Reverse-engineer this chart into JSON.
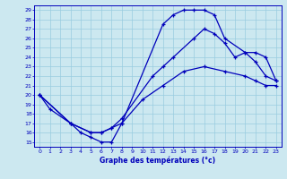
{
  "xlabel": "Graphe des températures (°c)",
  "bg_color": "#cce8f0",
  "line_color": "#0000bb",
  "grid_color": "#99cce0",
  "xlim": [
    -0.5,
    23.5
  ],
  "ylim": [
    14.5,
    29.5
  ],
  "xticks": [
    0,
    1,
    2,
    3,
    4,
    5,
    6,
    7,
    8,
    9,
    10,
    11,
    12,
    13,
    14,
    15,
    16,
    17,
    18,
    19,
    20,
    21,
    22,
    23
  ],
  "yticks": [
    15,
    16,
    17,
    18,
    19,
    20,
    21,
    22,
    23,
    24,
    25,
    26,
    27,
    28,
    29
  ],
  "curve1_x": [
    0,
    1,
    3,
    4,
    5,
    6,
    7,
    8,
    12,
    13,
    14,
    15,
    16,
    17,
    18,
    20,
    21,
    22,
    23
  ],
  "curve1_y": [
    20.0,
    18.5,
    17.0,
    16.0,
    15.5,
    15.0,
    15.0,
    17.0,
    27.5,
    28.5,
    29.0,
    29.0,
    29.0,
    28.5,
    26.0,
    24.5,
    24.5,
    24.0,
    21.5
  ],
  "curve2_x": [
    0,
    3,
    5,
    6,
    7,
    8,
    11,
    12,
    13,
    15,
    16,
    17,
    18,
    19,
    20,
    21,
    22,
    23
  ],
  "curve2_y": [
    20.0,
    17.0,
    16.0,
    16.0,
    16.5,
    17.5,
    22.0,
    23.0,
    24.0,
    26.0,
    27.0,
    26.5,
    25.5,
    24.0,
    24.5,
    23.5,
    22.0,
    21.5
  ],
  "curve3_x": [
    0,
    3,
    5,
    6,
    7,
    8,
    10,
    12,
    14,
    16,
    18,
    20,
    21,
    22,
    23
  ],
  "curve3_y": [
    20.0,
    17.0,
    16.0,
    16.0,
    16.5,
    17.0,
    19.5,
    21.0,
    22.5,
    23.0,
    22.5,
    22.0,
    21.5,
    21.0,
    21.0
  ]
}
